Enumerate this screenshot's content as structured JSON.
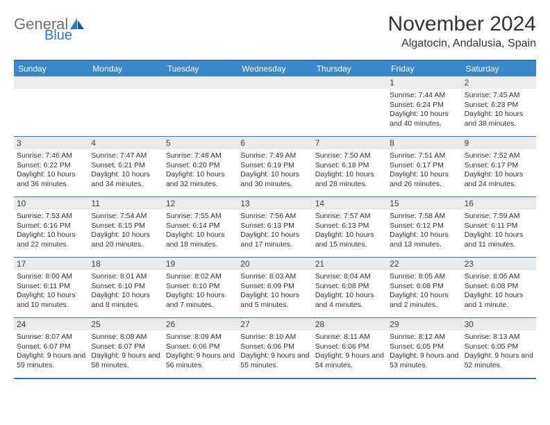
{
  "logo": {
    "text1": "General",
    "text2": "Blue"
  },
  "title": "November 2024",
  "location": "Algatocin, Andalusia, Spain",
  "colors": {
    "header_bg": "#3c87c7",
    "border": "#2f78ba",
    "day_bg": "#e9ebec",
    "text": "#333333",
    "logo_gray": "#6f6f6f",
    "logo_blue": "#2f78ba"
  },
  "days_of_week": [
    "Sunday",
    "Monday",
    "Tuesday",
    "Wednesday",
    "Thursday",
    "Friday",
    "Saturday"
  ],
  "weeks": [
    [
      {
        "day": "",
        "sunrise": "",
        "sunset": "",
        "daylight": ""
      },
      {
        "day": "",
        "sunrise": "",
        "sunset": "",
        "daylight": ""
      },
      {
        "day": "",
        "sunrise": "",
        "sunset": "",
        "daylight": ""
      },
      {
        "day": "",
        "sunrise": "",
        "sunset": "",
        "daylight": ""
      },
      {
        "day": "",
        "sunrise": "",
        "sunset": "",
        "daylight": ""
      },
      {
        "day": "1",
        "sunrise": "Sunrise: 7:44 AM",
        "sunset": "Sunset: 6:24 PM",
        "daylight": "Daylight: 10 hours and 40 minutes."
      },
      {
        "day": "2",
        "sunrise": "Sunrise: 7:45 AM",
        "sunset": "Sunset: 6:23 PM",
        "daylight": "Daylight: 10 hours and 38 minutes."
      }
    ],
    [
      {
        "day": "3",
        "sunrise": "Sunrise: 7:46 AM",
        "sunset": "Sunset: 6:22 PM",
        "daylight": "Daylight: 10 hours and 36 minutes."
      },
      {
        "day": "4",
        "sunrise": "Sunrise: 7:47 AM",
        "sunset": "Sunset: 6:21 PM",
        "daylight": "Daylight: 10 hours and 34 minutes."
      },
      {
        "day": "5",
        "sunrise": "Sunrise: 7:48 AM",
        "sunset": "Sunset: 6:20 PM",
        "daylight": "Daylight: 10 hours and 32 minutes."
      },
      {
        "day": "6",
        "sunrise": "Sunrise: 7:49 AM",
        "sunset": "Sunset: 6:19 PM",
        "daylight": "Daylight: 10 hours and 30 minutes."
      },
      {
        "day": "7",
        "sunrise": "Sunrise: 7:50 AM",
        "sunset": "Sunset: 6:18 PM",
        "daylight": "Daylight: 10 hours and 28 minutes."
      },
      {
        "day": "8",
        "sunrise": "Sunrise: 7:51 AM",
        "sunset": "Sunset: 6:17 PM",
        "daylight": "Daylight: 10 hours and 26 minutes."
      },
      {
        "day": "9",
        "sunrise": "Sunrise: 7:52 AM",
        "sunset": "Sunset: 6:17 PM",
        "daylight": "Daylight: 10 hours and 24 minutes."
      }
    ],
    [
      {
        "day": "10",
        "sunrise": "Sunrise: 7:53 AM",
        "sunset": "Sunset: 6:16 PM",
        "daylight": "Daylight: 10 hours and 22 minutes."
      },
      {
        "day": "11",
        "sunrise": "Sunrise: 7:54 AM",
        "sunset": "Sunset: 6:15 PM",
        "daylight": "Daylight: 10 hours and 20 minutes."
      },
      {
        "day": "12",
        "sunrise": "Sunrise: 7:55 AM",
        "sunset": "Sunset: 6:14 PM",
        "daylight": "Daylight: 10 hours and 18 minutes."
      },
      {
        "day": "13",
        "sunrise": "Sunrise: 7:56 AM",
        "sunset": "Sunset: 6:13 PM",
        "daylight": "Daylight: 10 hours and 17 minutes."
      },
      {
        "day": "14",
        "sunrise": "Sunrise: 7:57 AM",
        "sunset": "Sunset: 6:13 PM",
        "daylight": "Daylight: 10 hours and 15 minutes."
      },
      {
        "day": "15",
        "sunrise": "Sunrise: 7:58 AM",
        "sunset": "Sunset: 6:12 PM",
        "daylight": "Daylight: 10 hours and 13 minutes."
      },
      {
        "day": "16",
        "sunrise": "Sunrise: 7:59 AM",
        "sunset": "Sunset: 6:11 PM",
        "daylight": "Daylight: 10 hours and 11 minutes."
      }
    ],
    [
      {
        "day": "17",
        "sunrise": "Sunrise: 8:00 AM",
        "sunset": "Sunset: 6:11 PM",
        "daylight": "Daylight: 10 hours and 10 minutes."
      },
      {
        "day": "18",
        "sunrise": "Sunrise: 8:01 AM",
        "sunset": "Sunset: 6:10 PM",
        "daylight": "Daylight: 10 hours and 8 minutes."
      },
      {
        "day": "19",
        "sunrise": "Sunrise: 8:02 AM",
        "sunset": "Sunset: 6:10 PM",
        "daylight": "Daylight: 10 hours and 7 minutes."
      },
      {
        "day": "20",
        "sunrise": "Sunrise: 8:03 AM",
        "sunset": "Sunset: 6:09 PM",
        "daylight": "Daylight: 10 hours and 5 minutes."
      },
      {
        "day": "21",
        "sunrise": "Sunrise: 8:04 AM",
        "sunset": "Sunset: 6:08 PM",
        "daylight": "Daylight: 10 hours and 4 minutes."
      },
      {
        "day": "22",
        "sunrise": "Sunrise: 8:05 AM",
        "sunset": "Sunset: 6:08 PM",
        "daylight": "Daylight: 10 hours and 2 minutes."
      },
      {
        "day": "23",
        "sunrise": "Sunrise: 8:06 AM",
        "sunset": "Sunset: 6:08 PM",
        "daylight": "Daylight: 10 hours and 1 minute."
      }
    ],
    [
      {
        "day": "24",
        "sunrise": "Sunrise: 8:07 AM",
        "sunset": "Sunset: 6:07 PM",
        "daylight": "Daylight: 9 hours and 59 minutes."
      },
      {
        "day": "25",
        "sunrise": "Sunrise: 8:08 AM",
        "sunset": "Sunset: 6:07 PM",
        "daylight": "Daylight: 9 hours and 58 minutes."
      },
      {
        "day": "26",
        "sunrise": "Sunrise: 8:09 AM",
        "sunset": "Sunset: 6:06 PM",
        "daylight": "Daylight: 9 hours and 56 minutes."
      },
      {
        "day": "27",
        "sunrise": "Sunrise: 8:10 AM",
        "sunset": "Sunset: 6:06 PM",
        "daylight": "Daylight: 9 hours and 55 minutes."
      },
      {
        "day": "28",
        "sunrise": "Sunrise: 8:11 AM",
        "sunset": "Sunset: 6:06 PM",
        "daylight": "Daylight: 9 hours and 54 minutes."
      },
      {
        "day": "29",
        "sunrise": "Sunrise: 8:12 AM",
        "sunset": "Sunset: 6:05 PM",
        "daylight": "Daylight: 9 hours and 53 minutes."
      },
      {
        "day": "30",
        "sunrise": "Sunrise: 8:13 AM",
        "sunset": "Sunset: 6:05 PM",
        "daylight": "Daylight: 9 hours and 52 minutes."
      }
    ]
  ]
}
